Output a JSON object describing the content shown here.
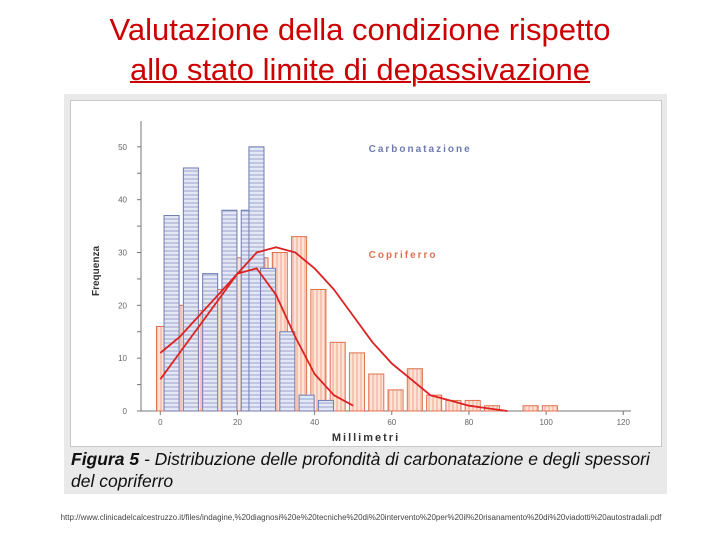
{
  "slide": {
    "title_line1": "Valutazione della condizione rispetto",
    "title_line2": "allo stato limite di depassivazione"
  },
  "figure": {
    "caption_number": "Figura 5",
    "caption_text": " - Distribuzione delle profondità di carbonatazione e degli spessori del copriferro"
  },
  "source_url": "http://www.clinicadelcalcestruzzo.it/files/indagine,%20diagnosi%20e%20tecniche%20di%20intervento%20per%20il%20risanamento%20di%20viadotti%20autostradali.pdf",
  "colors": {
    "title": "#cc0000",
    "carbonatazione": "#6f7bb0",
    "copriferro": "#e07050",
    "curve": "#dd2222"
  },
  "chart_data": {
    "type": "bar",
    "xlabel": "Millimetri",
    "ylabel": "Frequenza",
    "xlim": [
      -5,
      122
    ],
    "ylim": [
      0,
      53
    ],
    "xticks": [
      0,
      20,
      40,
      60,
      80,
      100,
      120
    ],
    "yticks": [
      0,
      5,
      10,
      15,
      20,
      25,
      30,
      35,
      40,
      45,
      50
    ],
    "grid": false,
    "series": [
      {
        "name": "Carbonatazione",
        "color": "#6f7bb0",
        "x": [
          0,
          5,
          10,
          15,
          20,
          22,
          25,
          30,
          35,
          40
        ],
        "values": [
          37,
          46,
          26,
          38,
          38,
          50,
          27,
          15,
          3,
          2
        ]
      },
      {
        "name": "Copriferro",
        "color": "#e07050",
        "x": [
          0,
          5,
          10,
          15,
          20,
          25,
          30,
          35,
          40,
          45,
          50,
          55,
          60,
          65,
          70,
          75,
          80,
          85,
          95,
          100
        ],
        "values": [
          16,
          20,
          19,
          23,
          29,
          29,
          30,
          33,
          23,
          13,
          11,
          7,
          4,
          8,
          3,
          2,
          2,
          1,
          1,
          1
        ]
      }
    ],
    "curves": [
      {
        "name": "Carbonatazione fit",
        "color": "#dd2222",
        "x": [
          0,
          5,
          10,
          15,
          20,
          25,
          30,
          35,
          40,
          45,
          50
        ],
        "values": [
          6,
          11,
          16,
          21,
          26,
          27,
          22,
          14,
          7,
          3,
          1
        ]
      },
      {
        "name": "Copriferro fit",
        "color": "#dd2222",
        "x": [
          0,
          5,
          10,
          15,
          20,
          25,
          30,
          35,
          40,
          45,
          50,
          55,
          60,
          65,
          70,
          75,
          80,
          85,
          90
        ],
        "values": [
          11,
          14,
          18,
          22,
          26,
          30,
          31,
          30,
          27,
          23,
          18,
          13,
          9,
          6,
          3,
          2,
          1,
          0.5,
          0
        ]
      }
    ],
    "annotations": [
      {
        "text": "Carbonatazione",
        "x": 54,
        "y": 49,
        "color": "#6f7bb0"
      },
      {
        "text": "Copriferro",
        "x": 54,
        "y": 29,
        "color": "#e07050"
      }
    ]
  }
}
